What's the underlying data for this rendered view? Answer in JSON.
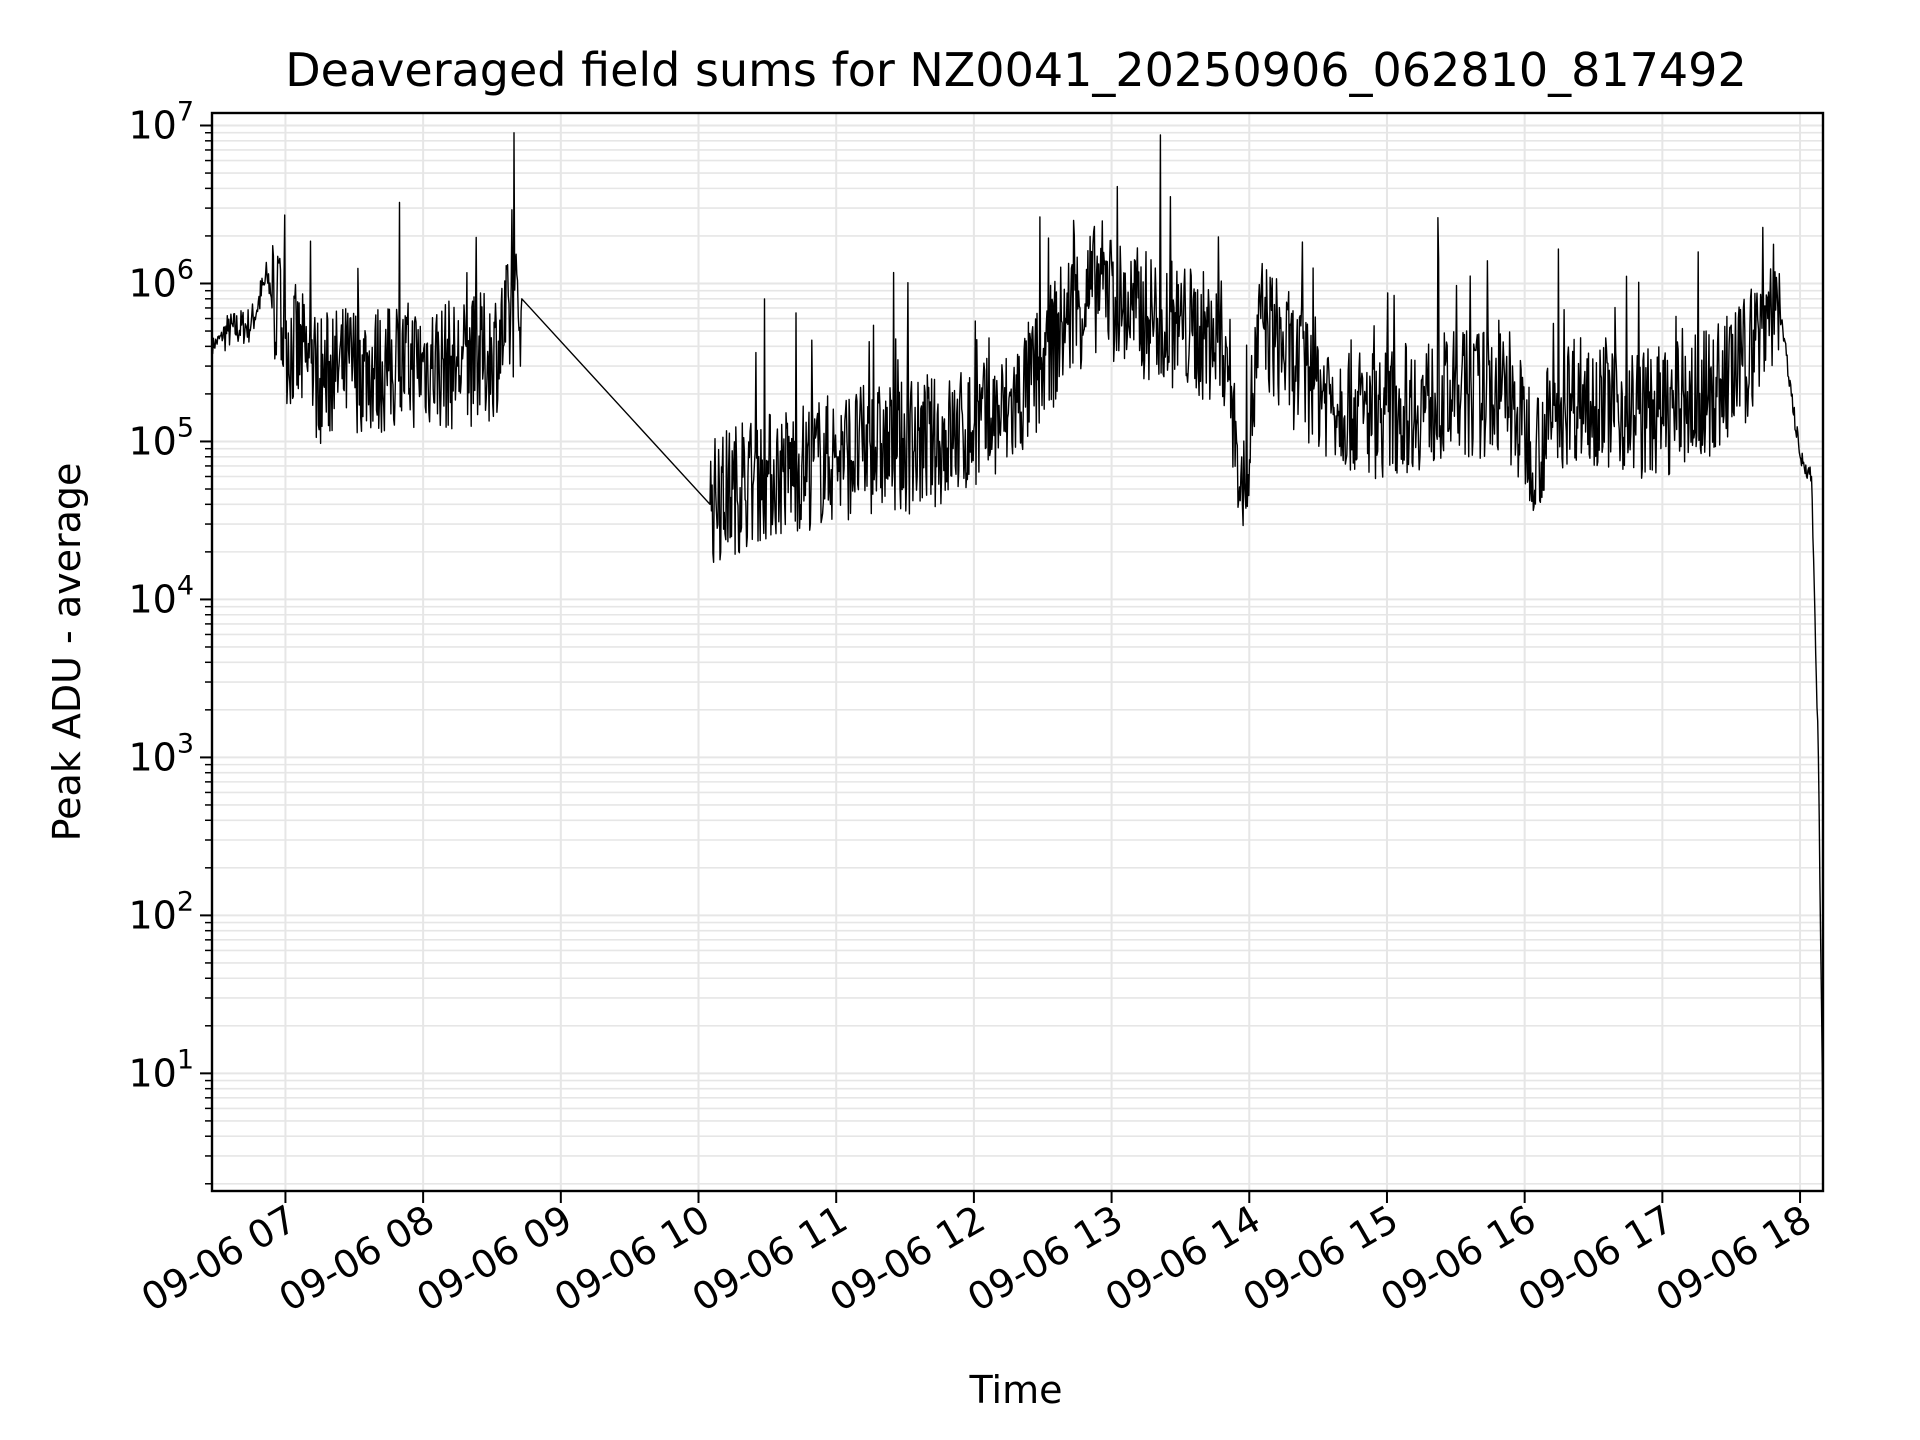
{
  "chart_data": {
    "type": "line",
    "title": "Deaveraged field sums for NZ0041_20250906_062810_817492",
    "xlabel": "Time",
    "ylabel": "Peak ADU - average",
    "yscale": "log",
    "ylim": [
      1.8,
      12000000
    ],
    "xlim": [
      "09-06 06:28",
      "09-06 18:10"
    ],
    "grid": true,
    "legend": "none",
    "line_color": "#000000",
    "x_ticks": [
      "09-06 07",
      "09-06 08",
      "09-06 09",
      "09-06 10",
      "09-06 11",
      "09-06 12",
      "09-06 13",
      "09-06 14",
      "09-06 15",
      "09-06 16",
      "09-06 17",
      "09-06 18"
    ],
    "y_ticks": [
      {
        "base": "10",
        "exp": "1",
        "value": 10
      },
      {
        "base": "10",
        "exp": "2",
        "value": 100
      },
      {
        "base": "10",
        "exp": "3",
        "value": 1000
      },
      {
        "base": "10",
        "exp": "4",
        "value": 10000
      },
      {
        "base": "10",
        "exp": "5",
        "value": 100000
      },
      {
        "base": "10",
        "exp": "6",
        "value": 1000000
      },
      {
        "base": "10",
        "exp": "7",
        "value": 10000000
      }
    ],
    "series": [
      {
        "x": [
          "09-06 06:28",
          "09-06 06:35",
          "09-06 06:45",
          "09-06 06:52",
          "09-06 07:00",
          "09-06 07:15",
          "09-06 07:30",
          "09-06 07:45",
          "09-06 08:00",
          "09-06 08:15",
          "09-06 08:30",
          "09-06 08:43",
          "09-06 10:05",
          "09-06 10:15",
          "09-06 10:30",
          "09-06 10:45",
          "09-06 11:00",
          "09-06 11:15",
          "09-06 11:30",
          "09-06 11:45",
          "09-06 12:00",
          "09-06 12:15",
          "09-06 12:30",
          "09-06 12:40",
          "09-06 12:55",
          "09-06 13:05",
          "09-06 13:20",
          "09-06 13:35",
          "09-06 13:50",
          "09-06 13:57",
          "09-06 14:05",
          "09-06 14:20",
          "09-06 14:35",
          "09-06 14:50",
          "09-06 15:05",
          "09-06 15:20",
          "09-06 15:35",
          "09-06 15:50",
          "09-06 16:05",
          "09-06 16:20",
          "09-06 16:35",
          "09-06 16:50",
          "09-06 17:05",
          "09-06 17:20",
          "09-06 17:35",
          "09-06 17:50",
          "09-06 18:00",
          "09-06 18:05",
          "09-06 18:08",
          "09-06 18:10"
        ],
        "y": [
          400000,
          500000,
          550000,
          1100000,
          450000,
          250000,
          300000,
          280000,
          320000,
          300000,
          350000,
          800000,
          40000,
          50000,
          60000,
          70000,
          80000,
          90000,
          90000,
          100000,
          120000,
          150000,
          300000,
          600000,
          1000000,
          700000,
          600000,
          500000,
          400000,
          40000,
          600000,
          300000,
          200000,
          150000,
          160000,
          180000,
          200000,
          200000,
          90000,
          200000,
          180000,
          150000,
          160000,
          200000,
          300000,
          900000,
          80000,
          60000,
          1000,
          4
        ]
      }
    ]
  }
}
